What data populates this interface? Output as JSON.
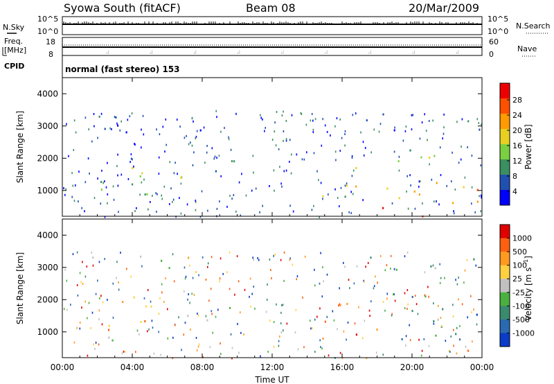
{
  "header": {
    "title": "Syowa South (fitACF)",
    "beam": "Beam 08",
    "date": "20/Mar/2009"
  },
  "status_panels": {
    "nsky": {
      "label": "N.Sky",
      "y_ticks": [
        "10^5",
        "10^0"
      ]
    },
    "nsearch": {
      "label": "N.Search",
      "y_ticks": [
        "10^5",
        "10^0"
      ]
    },
    "freq": {
      "label_line1": "Freq.",
      "label_line2": "[MHz]",
      "y_ticks": [
        "18",
        "8"
      ]
    },
    "nave": {
      "label": "Nave",
      "y_ticks": [
        "60",
        "0"
      ]
    },
    "cpid": {
      "label": "CPID",
      "value": "normal (fast stereo) 153"
    }
  },
  "colors": {
    "power_scale": [
      "#0000ff",
      "#2050b0",
      "#3a9060",
      "#7ad040",
      "#e8d020",
      "#ff9a00",
      "#ff5000",
      "#ee0000"
    ],
    "velocity_scale": [
      "#0a3cc8",
      "#2a6ab0",
      "#3a8a70",
      "#4ab040",
      "#c0c0c0",
      "#ffd040",
      "#ff9a20",
      "#ff6010",
      "#e00000"
    ],
    "ground_scatter": "#909090"
  },
  "chart_data": [
    {
      "type": "heatmap",
      "name": "power",
      "ylabel": "Slant Range [km]",
      "y_ticks": [
        "4000",
        "3000",
        "2000",
        "1000"
      ],
      "ylim": [
        200,
        4500
      ],
      "x_ticks": [
        "00:00",
        "04:00",
        "08:00",
        "12:00",
        "16:00",
        "20:00",
        "00:00"
      ],
      "xlim_hours": [
        0,
        24
      ],
      "colorbar": {
        "label": "Power [dB]",
        "ticks": [
          "28",
          "24",
          "20",
          "16",
          "12",
          "8",
          "4"
        ],
        "range": [
          0,
          30
        ]
      },
      "echo_regions": [
        {
          "t0": 1.0,
          "t1": 3.0,
          "r0": 700,
          "r1": 1400,
          "level": 0.35
        },
        {
          "t0": 2.5,
          "t1": 7.0,
          "r0": 900,
          "r1": 2000,
          "level": 0.45
        },
        {
          "t0": 4.0,
          "t1": 6.0,
          "r0": 1300,
          "r1": 2200,
          "level": 0.5
        },
        {
          "t0": 7.0,
          "t1": 10.0,
          "r0": 1300,
          "r1": 2000,
          "level": 0.3
        },
        {
          "t0": 9.5,
          "t1": 11.0,
          "r0": 1400,
          "r1": 2200,
          "level": 0.35
        },
        {
          "t0": 14.2,
          "t1": 17.0,
          "r0": 700,
          "r1": 1900,
          "level": 0.45
        },
        {
          "t0": 16.0,
          "t1": 19.0,
          "r0": 700,
          "r1": 1300,
          "level": 0.55
        },
        {
          "t0": 19.0,
          "t1": 24.0,
          "r0": 600,
          "r1": 2200,
          "level": 0.6
        },
        {
          "t0": 21.0,
          "t1": 24.0,
          "r0": 1000,
          "r1": 1800,
          "level": 0.7
        },
        {
          "t0": 0.5,
          "t1": 10.0,
          "r0": 2800,
          "r1": 3400,
          "level": 0.1
        },
        {
          "t0": 16.0,
          "t1": 24.0,
          "r0": 2800,
          "r1": 3400,
          "level": 0.15
        },
        {
          "t0": 17.0,
          "t1": 24.0,
          "r0": 200,
          "r1": 500,
          "level": 0.85
        }
      ]
    },
    {
      "type": "heatmap",
      "name": "velocity",
      "ylabel": "Slant Range [km]",
      "y_ticks": [
        "4000",
        "3000",
        "2000",
        "1000"
      ],
      "ylim": [
        200,
        4500
      ],
      "x_ticks": [
        "00:00",
        "04:00",
        "08:00",
        "12:00",
        "16:00",
        "20:00",
        "00:00"
      ],
      "xlabel": "Time UT",
      "xlim_hours": [
        0,
        24
      ],
      "colorbar": {
        "label": "Velocity [m s^-1]",
        "ticks": [
          "1000",
          "500",
          "100",
          "25",
          "-25",
          "-100",
          "-500",
          "-1000"
        ],
        "range": [
          -1200,
          1200
        ]
      },
      "echo_regions": [
        {
          "t0": 1.0,
          "t1": 3.0,
          "r0": 700,
          "r1": 1400,
          "level": 0.3
        },
        {
          "t0": 2.5,
          "t1": 7.0,
          "r0": 900,
          "r1": 2000,
          "level": 0.7
        },
        {
          "t0": 4.0,
          "t1": 6.0,
          "r0": 1300,
          "r1": 2200,
          "level": 0.75
        },
        {
          "t0": 7.0,
          "t1": 10.0,
          "r0": 1300,
          "r1": 2000,
          "level": 0.4
        },
        {
          "t0": 9.5,
          "t1": 11.0,
          "r0": 1400,
          "r1": 2200,
          "level": 0.35
        },
        {
          "t0": 14.2,
          "t1": 17.0,
          "r0": 700,
          "r1": 1900,
          "level": 0.85
        },
        {
          "t0": 16.0,
          "t1": 19.0,
          "r0": 700,
          "r1": 1300,
          "level": 0.8
        },
        {
          "t0": 19.0,
          "t1": 24.0,
          "r0": 600,
          "r1": 2200,
          "level": 0.3
        },
        {
          "t0": 21.0,
          "t1": 24.0,
          "r0": 1000,
          "r1": 1800,
          "level": 0.2
        },
        {
          "t0": 0.5,
          "t1": 10.0,
          "r0": 2800,
          "r1": 3400,
          "level": 0.5
        },
        {
          "t0": 16.0,
          "t1": 24.0,
          "r0": 2800,
          "r1": 3400,
          "level": 0.4
        },
        {
          "t0": 17.0,
          "t1": 24.0,
          "r0": 200,
          "r1": 500,
          "level": 0.7
        }
      ]
    }
  ]
}
